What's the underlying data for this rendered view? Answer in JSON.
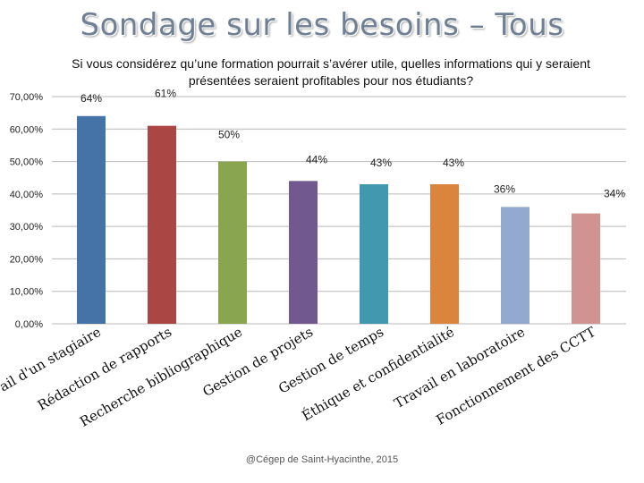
{
  "slide": {
    "title": "Sondage sur les besoins – Tous",
    "credit": "@Cégep de Saint-Hyacinthe, 2015"
  },
  "chart_data": {
    "type": "bar",
    "title": "Si vous considérez qu’une formation pourrait s’avérer utile, quelles informations qui y seraient présentées seraient profitables pour nos étudiants?",
    "categories": [
      "Travail d'un stagiaire",
      "Rédaction de rapports",
      "Recherche bibliographique",
      "Gestion de projets",
      "Gestion de temps",
      "Éthique et confidentialité",
      "Travail en laboratoire",
      "Fonctionnement des CCTT"
    ],
    "values": [
      64,
      61,
      50,
      44,
      43,
      43,
      36,
      34
    ],
    "data_labels": [
      "64%",
      "61%",
      "50%",
      "44%",
      "43%",
      "43%",
      "36%",
      "34%"
    ],
    "colors": [
      "#4572a7",
      "#aa4643",
      "#89a54e",
      "#71588f",
      "#4198af",
      "#db843d",
      "#93a9cf",
      "#d19392"
    ],
    "ylim": [
      0,
      70
    ],
    "yticks": [
      0,
      10,
      20,
      30,
      40,
      50,
      60,
      70
    ],
    "ytick_labels": [
      "0,00%",
      "10,00%",
      "20,00%",
      "30,00%",
      "40,00%",
      "50,00%",
      "60,00%",
      "70,00%"
    ],
    "xlabel": "",
    "ylabel": "",
    "grid": true,
    "legend": "none"
  }
}
